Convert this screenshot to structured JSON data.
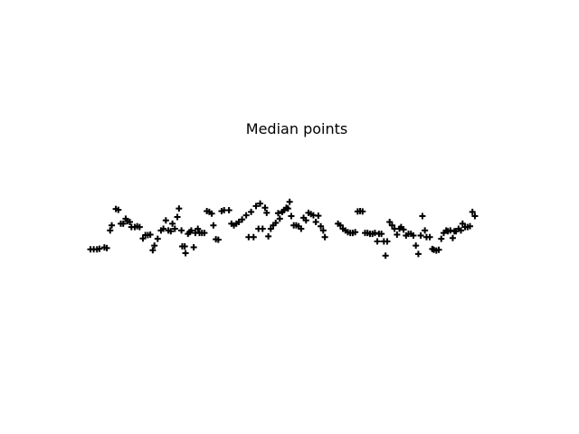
{
  "chart_data": {
    "type": "scatter",
    "title": "Median points",
    "xlabel": "",
    "ylabel": "",
    "axes_visible": false,
    "grid": false,
    "marker": "plus",
    "marker_color": "#000000",
    "xlim": [
      0,
      1
    ],
    "ylim": [
      -1,
      1
    ],
    "points": [
      [
        0.0,
        -0.245
      ],
      [
        0.008,
        -0.245
      ],
      [
        0.016,
        -0.245
      ],
      [
        0.022,
        -0.238
      ],
      [
        0.034,
        -0.222
      ],
      [
        0.04,
        -0.23
      ],
      [
        0.048,
        -0.02
      ],
      [
        0.052,
        0.04
      ],
      [
        0.062,
        0.235
      ],
      [
        0.068,
        0.225
      ],
      [
        0.074,
        0.06
      ],
      [
        0.08,
        0.06
      ],
      [
        0.086,
        0.12
      ],
      [
        0.09,
        0.09
      ],
      [
        0.096,
        0.08
      ],
      [
        0.1,
        0.02
      ],
      [
        0.108,
        0.02
      ],
      [
        0.114,
        0.03
      ],
      [
        0.12,
        0.02
      ],
      [
        0.128,
        -0.115
      ],
      [
        0.134,
        -0.075
      ],
      [
        0.14,
        -0.075
      ],
      [
        0.146,
        -0.07
      ],
      [
        0.152,
        -0.255
      ],
      [
        0.156,
        -0.2
      ],
      [
        0.164,
        -0.12
      ],
      [
        0.172,
        -0.02
      ],
      [
        0.178,
        0.0
      ],
      [
        0.184,
        0.1
      ],
      [
        0.19,
        -0.02
      ],
      [
        0.196,
        -0.03
      ],
      [
        0.2,
        0.06
      ],
      [
        0.206,
        0.0
      ],
      [
        0.212,
        0.14
      ],
      [
        0.216,
        0.24
      ],
      [
        0.222,
        -0.02
      ],
      [
        0.224,
        -0.21
      ],
      [
        0.23,
        -0.21
      ],
      [
        0.232,
        -0.29
      ],
      [
        0.238,
        -0.06
      ],
      [
        0.242,
        -0.04
      ],
      [
        0.246,
        -0.02
      ],
      [
        0.252,
        -0.22
      ],
      [
        0.256,
        -0.05
      ],
      [
        0.262,
        0.0
      ],
      [
        0.266,
        -0.05
      ],
      [
        0.272,
        -0.05
      ],
      [
        0.278,
        -0.05
      ],
      [
        0.284,
        0.21
      ],
      [
        0.29,
        0.2
      ],
      [
        0.296,
        0.18
      ],
      [
        0.3,
        0.04
      ],
      [
        0.306,
        -0.125
      ],
      [
        0.312,
        -0.13
      ],
      [
        0.32,
        0.21
      ],
      [
        0.326,
        0.22
      ],
      [
        0.338,
        0.22
      ],
      [
        0.344,
        0.06
      ],
      [
        0.35,
        0.04
      ],
      [
        0.356,
        0.06
      ],
      [
        0.362,
        0.08
      ],
      [
        0.37,
        0.11
      ],
      [
        0.38,
        0.16
      ],
      [
        0.386,
        -0.1
      ],
      [
        0.392,
        0.2
      ],
      [
        0.398,
        -0.1
      ],
      [
        0.404,
        0.27
      ],
      [
        0.41,
        0.0
      ],
      [
        0.414,
        0.3
      ],
      [
        0.42,
        0.0
      ],
      [
        0.426,
        0.25
      ],
      [
        0.43,
        0.19
      ],
      [
        0.434,
        -0.09
      ],
      [
        0.44,
        0.0
      ],
      [
        0.446,
        0.04
      ],
      [
        0.452,
        0.07
      ],
      [
        0.458,
        0.185
      ],
      [
        0.462,
        0.12
      ],
      [
        0.468,
        0.2
      ],
      [
        0.472,
        0.22
      ],
      [
        0.478,
        0.25
      ],
      [
        0.482,
        0.24
      ],
      [
        0.486,
        0.32
      ],
      [
        0.49,
        0.15
      ],
      [
        0.496,
        0.04
      ],
      [
        0.502,
        0.04
      ],
      [
        0.508,
        0.03
      ],
      [
        0.514,
        0.0
      ],
      [
        0.52,
        0.13
      ],
      [
        0.526,
        0.1
      ],
      [
        0.532,
        0.19
      ],
      [
        0.538,
        0.175
      ],
      [
        0.544,
        0.16
      ],
      [
        0.55,
        0.08
      ],
      [
        0.556,
        0.155
      ],
      [
        0.562,
        0.03
      ],
      [
        0.568,
        -0.02
      ],
      [
        0.572,
        -0.1
      ],
      [
        0.604,
        0.06
      ],
      [
        0.61,
        0.04
      ],
      [
        0.616,
        0.0
      ],
      [
        0.622,
        -0.02
      ],
      [
        0.628,
        -0.04
      ],
      [
        0.634,
        -0.05
      ],
      [
        0.64,
        -0.05
      ],
      [
        0.646,
        -0.04
      ],
      [
        0.652,
        0.205
      ],
      [
        0.658,
        0.21
      ],
      [
        0.664,
        0.205
      ],
      [
        0.67,
        -0.05
      ],
      [
        0.676,
        -0.05
      ],
      [
        0.682,
        -0.06
      ],
      [
        0.688,
        -0.06
      ],
      [
        0.694,
        -0.05
      ],
      [
        0.7,
        -0.15
      ],
      [
        0.704,
        -0.06
      ],
      [
        0.71,
        -0.06
      ],
      [
        0.716,
        -0.15
      ],
      [
        0.72,
        -0.32
      ],
      [
        0.724,
        -0.15
      ],
      [
        0.73,
        0.08
      ],
      [
        0.736,
        0.04
      ],
      [
        0.742,
        0.0
      ],
      [
        0.748,
        -0.07
      ],
      [
        0.754,
        0.0
      ],
      [
        0.758,
        0.02
      ],
      [
        0.764,
        -0.01
      ],
      [
        0.77,
        -0.08
      ],
      [
        0.776,
        -0.06
      ],
      [
        0.782,
        -0.06
      ],
      [
        0.788,
        -0.08
      ],
      [
        0.794,
        -0.2
      ],
      [
        0.8,
        -0.3
      ],
      [
        0.806,
        -0.08
      ],
      [
        0.81,
        0.15
      ],
      [
        0.816,
        -0.02
      ],
      [
        0.82,
        -0.1
      ],
      [
        0.828,
        -0.1
      ],
      [
        0.834,
        -0.24
      ],
      [
        0.838,
        -0.25
      ],
      [
        0.844,
        -0.26
      ],
      [
        0.85,
        -0.25
      ],
      [
        0.856,
        -0.12
      ],
      [
        0.862,
        -0.05
      ],
      [
        0.868,
        -0.02
      ],
      [
        0.872,
        -0.03
      ],
      [
        0.878,
        -0.02
      ],
      [
        0.884,
        -0.11
      ],
      [
        0.888,
        -0.03
      ],
      [
        0.892,
        -0.03
      ],
      [
        0.898,
        0.0
      ],
      [
        0.904,
        -0.02
      ],
      [
        0.908,
        0.06
      ],
      [
        0.914,
        0.02
      ],
      [
        0.92,
        0.02
      ],
      [
        0.926,
        0.03
      ],
      [
        0.932,
        0.2
      ],
      [
        0.938,
        0.15
      ]
    ]
  }
}
